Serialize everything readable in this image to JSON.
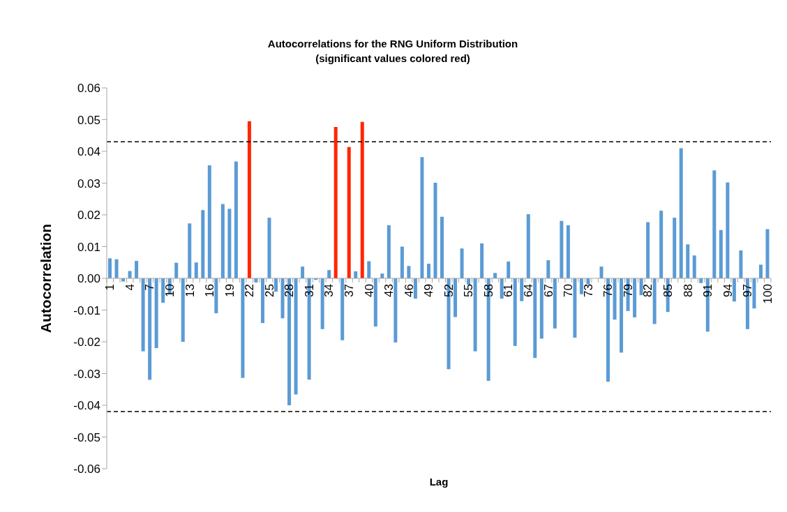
{
  "chart_data": {
    "type": "bar",
    "title": "Autocorrelations for the RNG Uniform Distribution\n(significant values colored red)",
    "xlabel": "Lag",
    "ylabel": "Autocorrelation",
    "categories": [
      "1",
      null,
      null,
      "4",
      null,
      null,
      "7",
      null,
      null,
      "10",
      null,
      null,
      "13",
      null,
      null,
      "16",
      null,
      null,
      "19",
      null,
      null,
      "22",
      null,
      null,
      "25",
      null,
      null,
      "28",
      null,
      null,
      "31",
      null,
      null,
      "34",
      null,
      null,
      "37",
      null,
      null,
      "40",
      null,
      null,
      "43",
      null,
      null,
      "46",
      null,
      null,
      "49",
      null,
      null,
      "52",
      null,
      null,
      "55",
      null,
      null,
      "58",
      null,
      null,
      "61",
      null,
      null,
      "64",
      null,
      null,
      "67",
      null,
      null,
      "70",
      null,
      null,
      "73",
      null,
      null,
      "76",
      null,
      null,
      "79",
      null,
      null,
      "82",
      null,
      null,
      "85",
      null,
      null,
      "88",
      null,
      null,
      "91",
      null,
      null,
      "94",
      null,
      null,
      "97",
      null,
      null,
      "100"
    ],
    "values": [
      0.0063,
      0.006,
      -0.001,
      0.0023,
      0.0055,
      -0.023,
      -0.032,
      -0.022,
      -0.0077,
      -0.005,
      0.0049,
      -0.02,
      0.0173,
      0.005,
      0.0215,
      0.0356,
      -0.011,
      0.0234,
      0.0219,
      0.0368,
      -0.0314,
      0.0495,
      -0.0013,
      -0.0141,
      0.0191,
      -0.0042,
      -0.0126,
      -0.04,
      -0.0366,
      0.0037,
      -0.0319,
      -0.0005,
      -0.016,
      0.0026,
      0.0477,
      -0.0195,
      0.0414,
      0.0022,
      0.0493,
      0.0054,
      -0.0152,
      0.0015,
      0.0167,
      -0.0202,
      0.01,
      0.0039,
      -0.0064,
      0.0382,
      0.0046,
      0.0301,
      0.0194,
      -0.0286,
      -0.0122,
      0.0094,
      -0.002,
      -0.023,
      0.011,
      -0.0323,
      0.0017,
      -0.0064,
      0.0053,
      -0.0213,
      -0.0072,
      0.0202,
      -0.0251,
      -0.019,
      0.0057,
      -0.0158,
      0.0181,
      0.0167,
      -0.0187,
      -0.005,
      -0.0019,
      0,
      0.0037,
      -0.0326,
      -0.013,
      -0.0234,
      -0.0103,
      -0.0123,
      -0.0053,
      0.0177,
      -0.0144,
      0.0213,
      -0.0106,
      0.0191,
      0.041,
      0.0107,
      0.0072,
      -0.0015,
      -0.0168,
      0.034,
      0.0152,
      0.0302,
      -0.0073,
      0.0088,
      -0.016,
      -0.0095,
      0.0043,
      0.0155
    ],
    "colors": [
      "#5b9bd5",
      "#5b9bd5",
      "#5b9bd5",
      "#5b9bd5",
      "#5b9bd5",
      "#5b9bd5",
      "#5b9bd5",
      "#5b9bd5",
      "#5b9bd5",
      "#5b9bd5",
      "#5b9bd5",
      "#5b9bd5",
      "#5b9bd5",
      "#5b9bd5",
      "#5b9bd5",
      "#5b9bd5",
      "#5b9bd5",
      "#5b9bd5",
      "#5b9bd5",
      "#5b9bd5",
      "#5b9bd5",
      "#ff2600",
      "#5b9bd5",
      "#5b9bd5",
      "#5b9bd5",
      "#5b9bd5",
      "#5b9bd5",
      "#5b9bd5",
      "#5b9bd5",
      "#5b9bd5",
      "#5b9bd5",
      "#5b9bd5",
      "#5b9bd5",
      "#5b9bd5",
      "#ff2600",
      "#5b9bd5",
      "#ff2600",
      "#5b9bd5",
      "#ff2600",
      "#5b9bd5",
      "#5b9bd5",
      "#5b9bd5",
      "#5b9bd5",
      "#5b9bd5",
      "#5b9bd5",
      "#5b9bd5",
      "#5b9bd5",
      "#5b9bd5",
      "#5b9bd5",
      "#5b9bd5",
      "#5b9bd5",
      "#5b9bd5",
      "#5b9bd5",
      "#5b9bd5",
      "#5b9bd5",
      "#5b9bd5",
      "#5b9bd5",
      "#5b9bd5",
      "#5b9bd5",
      "#5b9bd5",
      "#5b9bd5",
      "#5b9bd5",
      "#5b9bd5",
      "#5b9bd5",
      "#5b9bd5",
      "#5b9bd5",
      "#5b9bd5",
      "#5b9bd5",
      "#5b9bd5",
      "#5b9bd5",
      "#5b9bd5",
      "#5b9bd5",
      "#5b9bd5",
      "#5b9bd5",
      "#5b9bd5",
      "#5b9bd5",
      "#5b9bd5",
      "#5b9bd5",
      "#5b9bd5",
      "#5b9bd5",
      "#5b9bd5",
      "#5b9bd5",
      "#5b9bd5",
      "#5b9bd5",
      "#5b9bd5",
      "#5b9bd5",
      "#5b9bd5",
      "#5b9bd5",
      "#5b9bd5",
      "#5b9bd5",
      "#5b9bd5",
      "#5b9bd5",
      "#5b9bd5",
      "#5b9bd5",
      "#5b9bd5",
      "#5b9bd5",
      "#5b9bd5",
      "#5b9bd5",
      "#5b9bd5",
      "#5b9bd5"
    ],
    "ylim": [
      -0.06,
      0.06
    ],
    "yticks": [
      {
        "value": -0.06,
        "label": "-0.06"
      },
      {
        "value": -0.05,
        "label": "-0.05"
      },
      {
        "value": -0.04,
        "label": "-0.04"
      },
      {
        "value": -0.03,
        "label": "-0.03"
      },
      {
        "value": -0.02,
        "label": "-0.02"
      },
      {
        "value": -0.01,
        "label": "-0.01"
      },
      {
        "value": 0,
        "label": "0.00"
      },
      {
        "value": 0.01,
        "label": "0.01"
      },
      {
        "value": 0.02,
        "label": "0.02"
      },
      {
        "value": 0.03,
        "label": "0.03"
      },
      {
        "value": 0.04,
        "label": "0.04"
      },
      {
        "value": 0.05,
        "label": "0.05"
      },
      {
        "value": 0.06,
        "label": "0.06"
      }
    ],
    "ref_lines": [
      {
        "axis": "y",
        "value": 0.043,
        "color": "#000000",
        "line_style": "dashed"
      },
      {
        "axis": "y",
        "value": -0.042,
        "color": "#000000",
        "line_style": "dashed"
      }
    ]
  }
}
